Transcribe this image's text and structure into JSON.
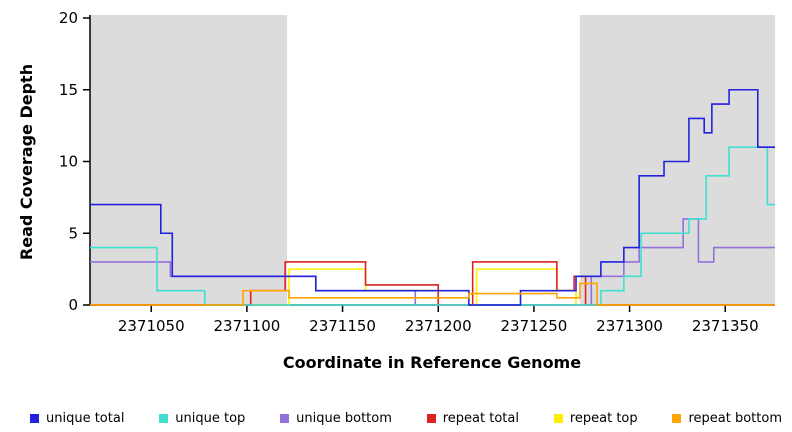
{
  "figure": {
    "xlabel": "Coordinate in Reference Genome",
    "ylabel": "Read Coverage Depth"
  },
  "chart_data": {
    "type": "line",
    "subtype": "step",
    "title": "",
    "xlabel": "Coordinate in Reference Genome",
    "ylabel": "Read Coverage Depth",
    "xlim": [
      2371018,
      2371376
    ],
    "ylim": [
      0,
      20
    ],
    "xticks": [
      2371050,
      2371100,
      2371150,
      2371200,
      2371250,
      2371300,
      2371350
    ],
    "yticks": [
      0,
      5,
      10,
      15,
      20
    ],
    "grid": false,
    "legend_position": "bottom",
    "background_color": "#FFFFFF",
    "shaded_region_color": "#DCDCDC",
    "shaded_regions": [
      {
        "from": 2371018,
        "to": 2371121
      },
      {
        "from": 2371274,
        "to": 2371376
      }
    ],
    "series": [
      {
        "name": "unique total",
        "color": "#2222DD",
        "points": [
          [
            2371018,
            7
          ],
          [
            2371055,
            5
          ],
          [
            2371061,
            2
          ],
          [
            2371136,
            1
          ],
          [
            2371216,
            0
          ],
          [
            2371243,
            1
          ],
          [
            2371272,
            2
          ],
          [
            2371285,
            3
          ],
          [
            2371297,
            4
          ],
          [
            2371305,
            9
          ],
          [
            2371318,
            10
          ],
          [
            2371331,
            13
          ],
          [
            2371339,
            12
          ],
          [
            2371343,
            14
          ],
          [
            2371352,
            15
          ],
          [
            2371367,
            11
          ]
        ]
      },
      {
        "name": "unique top",
        "color": "#40E0D0",
        "points": [
          [
            2371018,
            4
          ],
          [
            2371053,
            1
          ],
          [
            2371078,
            0
          ],
          [
            2371285,
            1
          ],
          [
            2371297,
            2
          ],
          [
            2371306,
            5
          ],
          [
            2371331,
            6
          ],
          [
            2371340,
            9
          ],
          [
            2371352,
            11
          ],
          [
            2371372,
            7
          ]
        ]
      },
      {
        "name": "unique bottom",
        "color": "#9370DB",
        "points": [
          [
            2371018,
            3
          ],
          [
            2371060,
            2
          ],
          [
            2371136,
            1
          ],
          [
            2371188,
            0
          ],
          [
            2371280,
            2
          ],
          [
            2371297,
            3
          ],
          [
            2371305,
            4
          ],
          [
            2371328,
            6
          ],
          [
            2371336,
            3
          ],
          [
            2371344,
            4
          ]
        ]
      },
      {
        "name": "repeat total",
        "color": "#DD2222",
        "points": [
          [
            2371018,
            0
          ],
          [
            2371102,
            1
          ],
          [
            2371120,
            3
          ],
          [
            2371162,
            1.4
          ],
          [
            2371200,
            0
          ],
          [
            2371218,
            3
          ],
          [
            2371262,
            1
          ],
          [
            2371271,
            2
          ],
          [
            2371277,
            0
          ]
        ]
      },
      {
        "name": "repeat top",
        "color": "#FFEE00",
        "points": [
          [
            2371018,
            0
          ],
          [
            2371122,
            2.5
          ],
          [
            2371162,
            1
          ],
          [
            2371200,
            0
          ],
          [
            2371220,
            2.5
          ],
          [
            2371262,
            1
          ],
          [
            2371272,
            0
          ]
        ]
      },
      {
        "name": "repeat bottom",
        "color": "#FFA500",
        "points": [
          [
            2371018,
            0
          ],
          [
            2371098,
            1
          ],
          [
            2371122,
            0.5
          ],
          [
            2371216,
            0.8
          ],
          [
            2371262,
            0.5
          ],
          [
            2371274,
            1.5
          ],
          [
            2371283,
            0
          ]
        ]
      }
    ],
    "draw_order": [
      "repeat top",
      "repeat total",
      "unique bottom",
      "unique top",
      "unique total",
      "repeat bottom"
    ]
  }
}
